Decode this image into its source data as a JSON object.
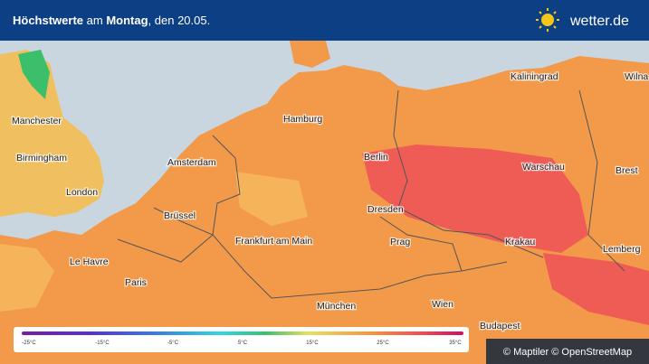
{
  "header": {
    "title_parts": [
      "Höchstwerte",
      " am ",
      "Montag",
      ", den 20.05."
    ],
    "logo": "wetter.de"
  },
  "cities": [
    "Manchester",
    "Birmingham",
    "London",
    "Amsterdam",
    "Hamburg",
    "Berlin",
    "Kaliningrad",
    "Wilna",
    "Warschau",
    "Brest",
    "Brüssel",
    "Dresden",
    "Prag",
    "Krakau",
    "Lemberg",
    "Frankfurt am Main",
    "Le Havre",
    "Paris",
    "München",
    "Wien",
    "Budapest"
  ],
  "legend": {
    "labels": [
      "-25°C",
      "-15°C",
      "-5°C",
      "5°C",
      "15°C",
      "25°C",
      "35°C"
    ]
  },
  "attribution": "© Maptiler © OpenStreetMap"
}
